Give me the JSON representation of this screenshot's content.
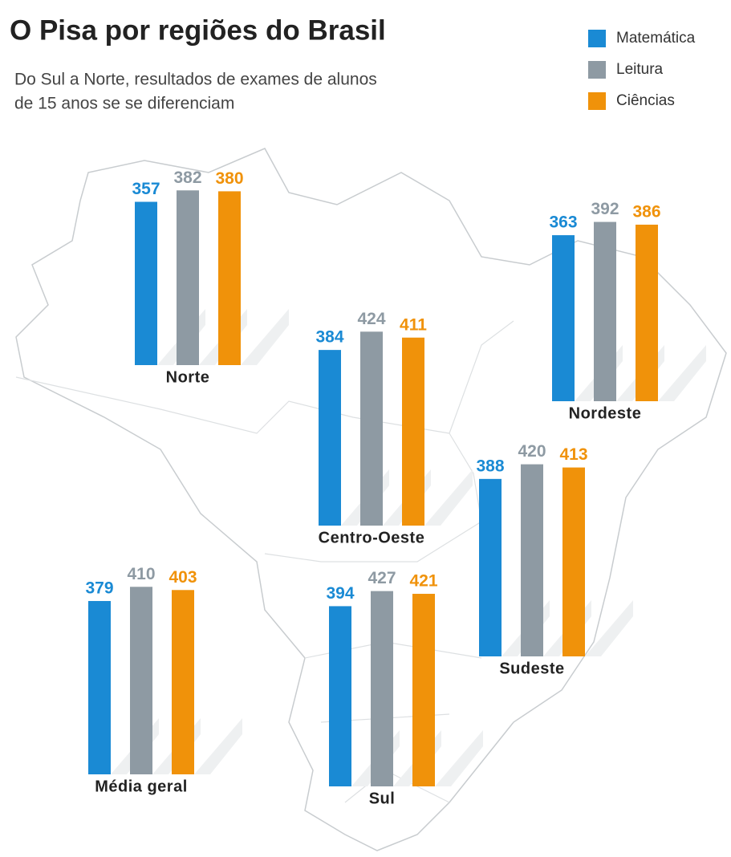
{
  "chart_data": {
    "type": "bar",
    "title": "O Pisa por regiões do Brasil",
    "subtitle": [
      "Do Sul a Norte, resultados de exames de alunos",
      "de 15 anos se  se diferenciam"
    ],
    "categories": [
      "Norte",
      "Nordeste",
      "Centro-Oeste",
      "Sudeste",
      "Média geral",
      "Sul"
    ],
    "series": [
      {
        "name": "Matemática",
        "color": "#1a8ad4",
        "values": [
          357,
          363,
          384,
          388,
          379,
          394
        ]
      },
      {
        "name": "Leitura",
        "color": "#8e9aa3",
        "values": [
          382,
          392,
          424,
          420,
          410,
          427
        ]
      },
      {
        "name": "Ciências",
        "color": "#f0920a",
        "values": [
          380,
          386,
          411,
          413,
          403,
          421
        ]
      }
    ]
  }
}
